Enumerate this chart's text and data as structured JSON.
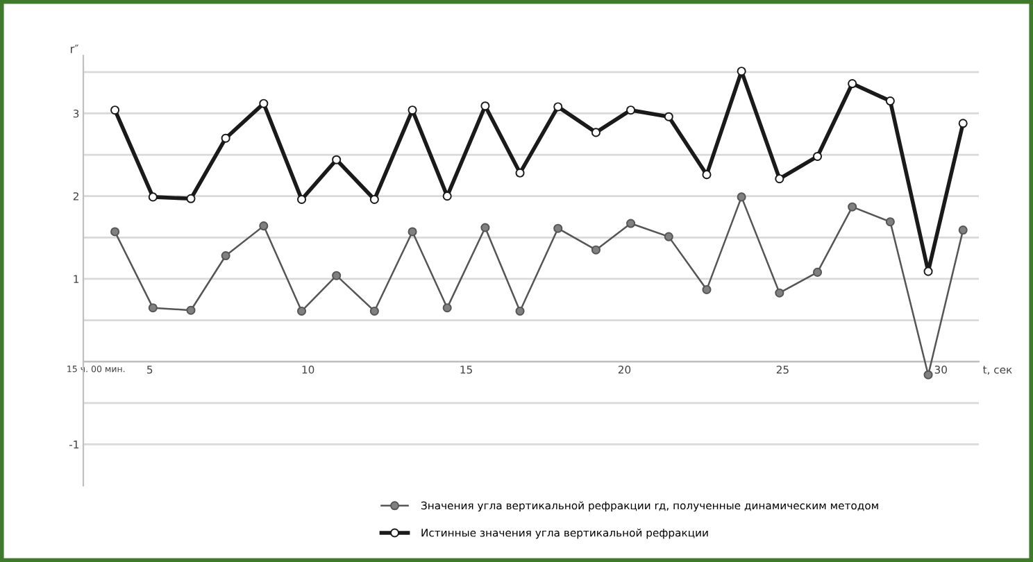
{
  "chart_data": {
    "type": "line",
    "ylabel": "r″",
    "xlabel": "t, сек",
    "x": [
      3.9,
      5.1,
      6.3,
      7.4,
      8.6,
      9.8,
      10.9,
      12.1,
      13.3,
      14.4,
      15.6,
      16.7,
      17.9,
      19.1,
      20.2,
      21.4,
      22.6,
      23.7,
      24.9,
      26.1,
      27.2,
      28.4,
      29.6,
      30.7
    ],
    "series": [
      {
        "name": "Значения угла вертикальной рефракции rд, полученные динамическим методом",
        "color": "#555555",
        "values": [
          1.57,
          0.65,
          0.62,
          1.28,
          1.64,
          0.61,
          1.04,
          0.61,
          1.57,
          0.65,
          1.62,
          0.61,
          1.61,
          1.35,
          1.67,
          1.51,
          0.87,
          1.99,
          0.83,
          1.08,
          1.87,
          1.69,
          -0.16,
          1.59
        ]
      },
      {
        "name": "Истинные значения угла вертикальной рефракции",
        "color": "#1a1a1a",
        "values": [
          3.04,
          1.99,
          1.97,
          2.7,
          3.12,
          1.96,
          2.44,
          1.96,
          3.04,
          2.0,
          3.09,
          2.28,
          3.08,
          2.77,
          3.04,
          2.96,
          2.26,
          3.51,
          2.21,
          2.48,
          3.36,
          3.15,
          1.09,
          2.88
        ]
      }
    ],
    "xlim": [
      2.9,
      31.2
    ],
    "xticks": [
      {
        "value": 3.3,
        "label": "15 ч. 00 мин."
      },
      5,
      10,
      15,
      20,
      25,
      30
    ],
    "ylim": [
      -1.5,
      3.7
    ],
    "yticks": [
      {
        "value": -1,
        "label": "-1"
      },
      {
        "value": -0.5,
        "label": null
      },
      {
        "value": 0,
        "label": null
      },
      {
        "value": 0.5,
        "label": null
      },
      1,
      {
        "value": 1.5,
        "label": null
      },
      2,
      {
        "value": 2.5,
        "label": null
      },
      3,
      {
        "value": 3.5,
        "label": null
      }
    ],
    "grid": "y",
    "legend": "bottom",
    "marker": "circle",
    "line_style": "solid"
  }
}
